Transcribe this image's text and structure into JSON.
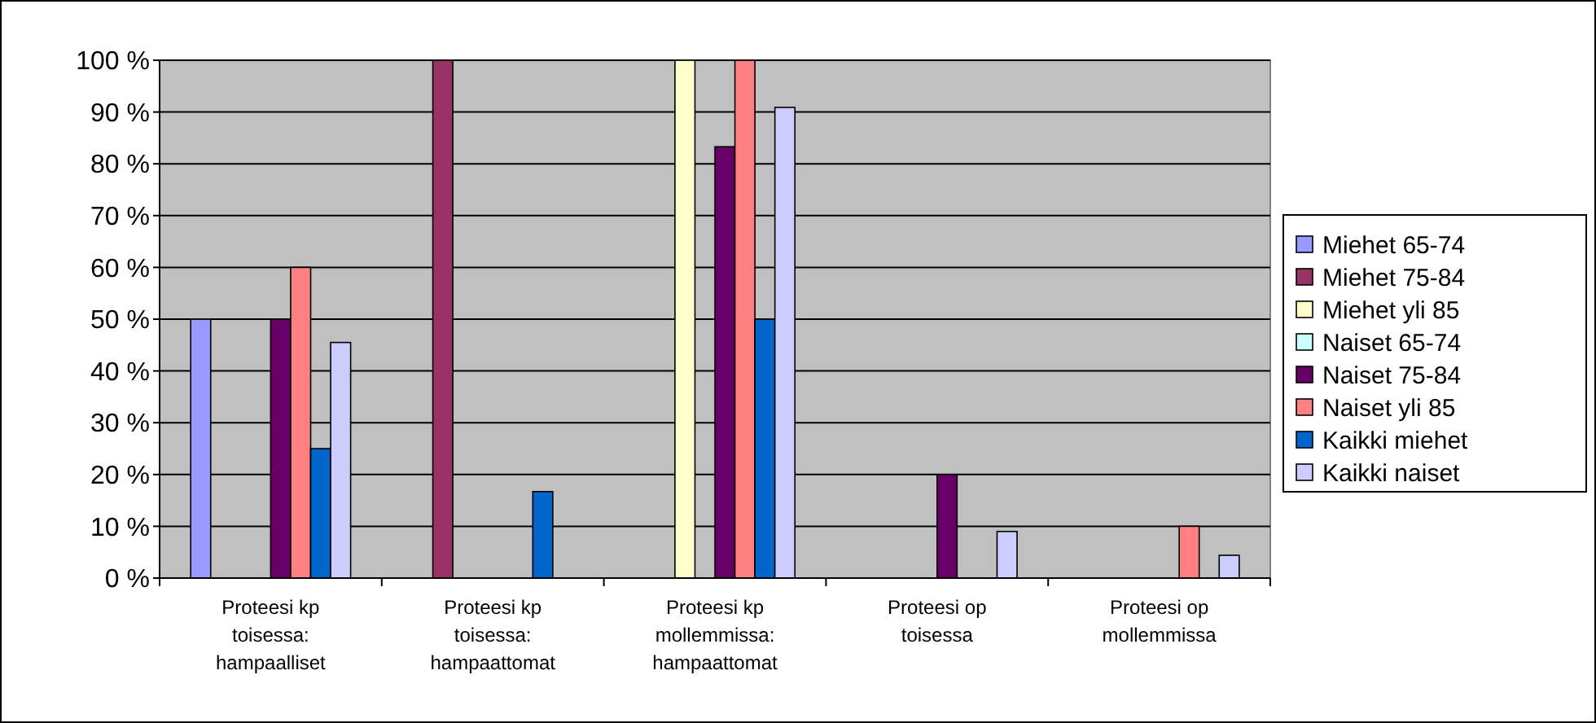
{
  "chart_data": {
    "type": "bar",
    "categories": [
      "Proteesi kp toisessa: hampaalliset",
      "Proteesi kp toisessa: hampaattomat",
      "Proteesi kp mollemmissa: hampaattomat",
      "Proteesi op toisessa",
      "Proteesi op mollemmissa"
    ],
    "series": [
      {
        "name": "Miehet 65-74",
        "color": "#9999ff",
        "values": [
          50,
          0,
          0,
          0,
          0
        ]
      },
      {
        "name": "Miehet 75-84",
        "color": "#993366",
        "values": [
          0,
          100,
          0,
          0,
          0
        ]
      },
      {
        "name": "Miehet yli 85",
        "color": "#ffffcc",
        "values": [
          0,
          0,
          100,
          0,
          0
        ]
      },
      {
        "name": "Naiset 65-74",
        "color": "#ccffff",
        "values": [
          0,
          0,
          0,
          0,
          0
        ]
      },
      {
        "name": "Naiset 75-84",
        "color": "#660066",
        "values": [
          50,
          0,
          83.3,
          20,
          0
        ]
      },
      {
        "name": "Naiset yli 85",
        "color": "#ff8080",
        "values": [
          60,
          0,
          100,
          0,
          10
        ]
      },
      {
        "name": "Kaikki miehet",
        "color": "#0066cc",
        "values": [
          25,
          16.7,
          50,
          0,
          0
        ]
      },
      {
        "name": "Kaikki naiset",
        "color": "#ccccff",
        "values": [
          45.5,
          0,
          90.9,
          9,
          4.4
        ]
      }
    ],
    "ylim": [
      0,
      100
    ],
    "yticks": [
      {
        "value": 0,
        "label": "0 %"
      },
      {
        "value": 10,
        "label": "10 %"
      },
      {
        "value": 20,
        "label": "20 %"
      },
      {
        "value": 30,
        "label": "30 %"
      },
      {
        "value": 40,
        "label": "40 %"
      },
      {
        "value": 50,
        "label": "50 %"
      },
      {
        "value": 60,
        "label": "60 %"
      },
      {
        "value": 70,
        "label": "70 %"
      },
      {
        "value": 80,
        "label": "80 %"
      },
      {
        "value": 90,
        "label": "90 %"
      },
      {
        "value": 100,
        "label": "100 %"
      }
    ],
    "grid": "y",
    "legend": "right"
  }
}
